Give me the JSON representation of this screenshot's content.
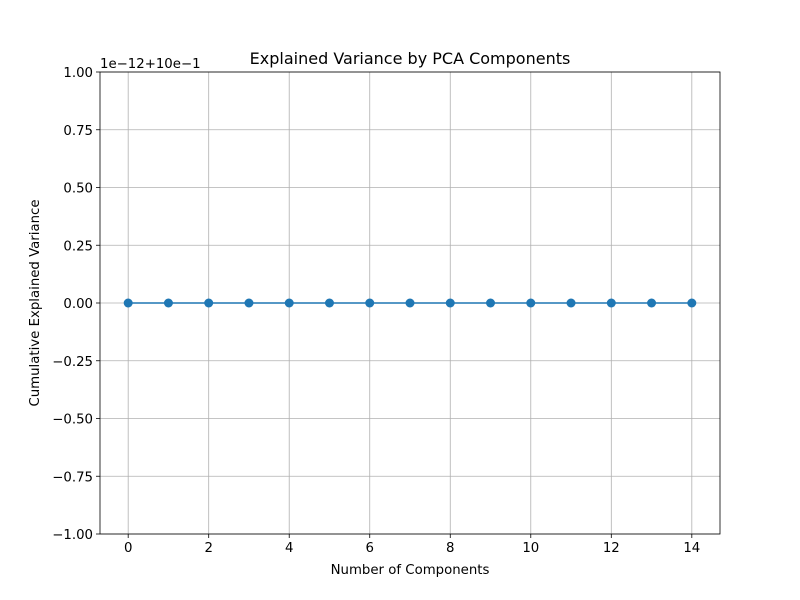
{
  "chart_data": {
    "type": "line",
    "title": "Explained Variance by PCA Components",
    "xlabel": "Number of Components",
    "ylabel": "Cumulative Explained Variance",
    "y_offset_text": "1e−12+10e−1",
    "x": [
      0,
      1,
      2,
      3,
      4,
      5,
      6,
      7,
      8,
      9,
      10,
      11,
      12,
      13,
      14
    ],
    "series": [
      {
        "values": [
          0,
          0,
          0,
          0,
          0,
          0,
          0,
          0,
          0,
          0,
          0,
          0,
          0,
          0,
          0
        ]
      }
    ],
    "xlim": [
      -0.7,
      14.7
    ],
    "ylim": [
      -1.0,
      1.0
    ],
    "xticks": [
      0,
      2,
      4,
      6,
      8,
      10,
      12,
      14
    ],
    "xtick_labels": [
      "0",
      "2",
      "4",
      "6",
      "8",
      "10",
      "12",
      "14"
    ],
    "yticks": [
      -1.0,
      -0.75,
      -0.5,
      -0.25,
      0.0,
      0.25,
      0.5,
      0.75,
      1.0
    ],
    "ytick_labels": [
      "−1.00",
      "−0.75",
      "−0.50",
      "−0.25",
      "0.00",
      "0.25",
      "0.50",
      "0.75",
      "1.00"
    ],
    "grid": true,
    "marker": "circle",
    "color": "#1f77b4"
  }
}
